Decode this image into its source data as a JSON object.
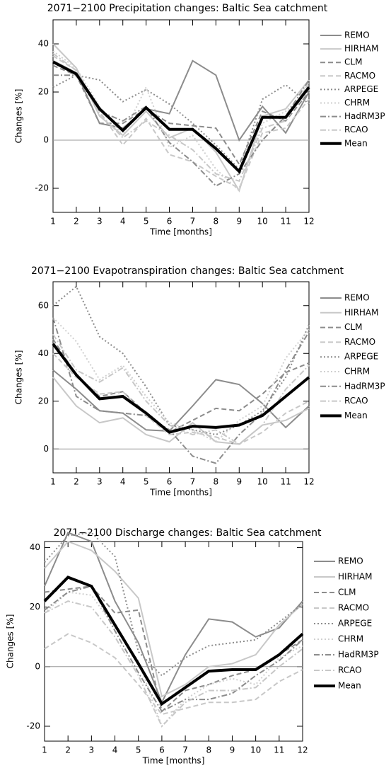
{
  "chart_data": [
    {
      "type": "line",
      "title": "2071−2100 Precipitation changes: Baltic Sea catchment",
      "x_label": "Time [months]",
      "y_label": "Changes [%]",
      "x": [
        1,
        2,
        3,
        4,
        5,
        6,
        7,
        8,
        9,
        10,
        11,
        12
      ],
      "xlim": [
        1,
        12
      ],
      "xticks": [
        1,
        2,
        3,
        4,
        5,
        6,
        7,
        8,
        9,
        10,
        11,
        12
      ],
      "ylim": [
        -30,
        50
      ],
      "yticks": [
        -20,
        0,
        20,
        40
      ],
      "legend": "right",
      "series": [
        {
          "name": "REMO",
          "color": "#8c8c8c",
          "linestyle": "solid",
          "linewidth": 2,
          "values": [
            33,
            28,
            7,
            5,
            13,
            11,
            33,
            27,
            0,
            14,
            3,
            20
          ]
        },
        {
          "name": "HIRHAM",
          "color": "#c8c8c8",
          "linestyle": "solid",
          "linewidth": 2,
          "values": [
            40,
            30,
            10,
            2,
            12,
            1,
            5,
            -5,
            -21,
            10,
            13,
            25
          ]
        },
        {
          "name": "CLM",
          "color": "#8c8c8c",
          "linestyle": "dashed",
          "linewidth": 2,
          "values": [
            31,
            27,
            7,
            7,
            13,
            7,
            6,
            5,
            -10,
            12,
            8,
            20
          ]
        },
        {
          "name": "RACMO",
          "color": "#c8c8c8",
          "linestyle": "dashed",
          "linewidth": 2,
          "values": [
            35,
            29,
            12,
            -2,
            9,
            -6,
            -9,
            -15,
            -20,
            3,
            5,
            17
          ]
        },
        {
          "name": "ARPEGE",
          "color": "#8c8c8c",
          "linestyle": "dotted",
          "linewidth": 2,
          "values": [
            22,
            27,
            25,
            16,
            21,
            15,
            7,
            -2,
            -12,
            17,
            23,
            15
          ]
        },
        {
          "name": "CHRM",
          "color": "#d0d0d0",
          "linestyle": "dotted",
          "linewidth": 2,
          "values": [
            37,
            30,
            14,
            2,
            22,
            -3,
            2,
            -12,
            -21,
            7,
            12,
            21
          ]
        },
        {
          "name": "HadRM3P",
          "color": "#8c8c8c",
          "linestyle": "dashdot",
          "linewidth": 2,
          "values": [
            27,
            27,
            12,
            8,
            14,
            -1,
            -9,
            -19,
            -14,
            0,
            10,
            25
          ]
        },
        {
          "name": "RCAO",
          "color": "#c8c8c8",
          "linestyle": "dashdot",
          "linewidth": 2,
          "values": [
            36,
            29,
            11,
            1,
            8,
            2,
            -4,
            -14,
            -17,
            5,
            8,
            24
          ]
        },
        {
          "name": "Mean",
          "color": "#000000",
          "linestyle": "solid",
          "linewidth": 4,
          "values": [
            32.5,
            27.5,
            13,
            4,
            13.5,
            4.5,
            4.5,
            -3.5,
            -13,
            9.5,
            9.5,
            22
          ]
        }
      ]
    },
    {
      "type": "line",
      "title": "2071−2100 Evapotranspiration changes: Baltic Sea catchment",
      "x_label": "Time [months]",
      "y_label": "Changes [%]",
      "x": [
        1,
        2,
        3,
        4,
        5,
        6,
        7,
        8,
        9,
        10,
        11,
        12
      ],
      "xlim": [
        1,
        12
      ],
      "xticks": [
        1,
        2,
        3,
        4,
        5,
        6,
        7,
        8,
        9,
        10,
        11,
        12
      ],
      "ylim": [
        -10,
        70
      ],
      "yticks": [
        0,
        20,
        40,
        60
      ],
      "legend": "right",
      "series": [
        {
          "name": "REMO",
          "color": "#8c8c8c",
          "linestyle": "solid",
          "linewidth": 2,
          "values": [
            33,
            25,
            16,
            15,
            8,
            7.5,
            18,
            29,
            27,
            19,
            9,
            18
          ]
        },
        {
          "name": "HIRHAM",
          "color": "#c8c8c8",
          "linestyle": "solid",
          "linewidth": 2,
          "values": [
            30,
            18,
            11,
            13,
            6,
            3,
            11,
            3,
            2,
            10,
            12,
            17
          ]
        },
        {
          "name": "CLM",
          "color": "#8c8c8c",
          "linestyle": "dashed",
          "linewidth": 2,
          "values": [
            46,
            31,
            22,
            24,
            15,
            7,
            12,
            17,
            16,
            23,
            32,
            36
          ]
        },
        {
          "name": "RACMO",
          "color": "#c8c8c8",
          "linestyle": "dashed",
          "linewidth": 2,
          "values": [
            40,
            30,
            23,
            24,
            14,
            6,
            7,
            5,
            2,
            7,
            15,
            20
          ]
        },
        {
          "name": "ARPEGE",
          "color": "#8c8c8c",
          "linestyle": "dotted",
          "linewidth": 2,
          "values": [
            60,
            68,
            47,
            40,
            26,
            10,
            8,
            6,
            10,
            16,
            30,
            52
          ]
        },
        {
          "name": "CHRM",
          "color": "#d0d0d0",
          "linestyle": "dotted",
          "linewidth": 2,
          "values": [
            55,
            45,
            29,
            35,
            22,
            11,
            8,
            3,
            12,
            18,
            38,
            50
          ]
        },
        {
          "name": "HadRM3P",
          "color": "#8c8c8c",
          "linestyle": "dashdot",
          "linewidth": 2,
          "values": [
            55,
            22,
            16,
            15,
            14,
            8,
            -3,
            -6,
            6,
            15,
            33,
            49
          ]
        },
        {
          "name": "RCAO",
          "color": "#c8c8c8",
          "linestyle": "dashdot",
          "linewidth": 2,
          "values": [
            48,
            33,
            28,
            34,
            20,
            10,
            6,
            8,
            2,
            10,
            25,
            35
          ]
        },
        {
          "name": "Mean",
          "color": "#000000",
          "linestyle": "solid",
          "linewidth": 4,
          "values": [
            44,
            31,
            21,
            22,
            15,
            7,
            9.5,
            9,
            10,
            14,
            22,
            30
          ]
        }
      ]
    },
    {
      "type": "line",
      "title": "2071−2100 Discharge changes: Baltic Sea catchment",
      "x_label": "Time [months]",
      "y_label": "Changes [%]",
      "x": [
        1,
        2,
        3,
        4,
        5,
        6,
        7,
        8,
        9,
        10,
        11,
        12
      ],
      "xlim": [
        1,
        12
      ],
      "xticks": [
        1,
        2,
        3,
        4,
        5,
        6,
        7,
        8,
        9,
        10,
        11,
        12
      ],
      "ylim": [
        -25,
        42
      ],
      "yticks": [
        -20,
        0,
        20,
        40
      ],
      "legend": "right",
      "series": [
        {
          "name": "REMO",
          "color": "#8c8c8c",
          "linestyle": "solid",
          "linewidth": 2,
          "values": [
            27,
            45,
            42,
            22,
            8,
            -12,
            4,
            16,
            15,
            10,
            13,
            22
          ]
        },
        {
          "name": "HIRHAM",
          "color": "#c8c8c8",
          "linestyle": "solid",
          "linewidth": 2,
          "values": [
            33,
            42,
            39,
            32,
            23,
            -10,
            -6,
            0,
            1,
            4,
            14,
            21
          ]
        },
        {
          "name": "CLM",
          "color": "#8c8c8c",
          "linestyle": "dashed",
          "linewidth": 2,
          "values": [
            25,
            26,
            27,
            18,
            19,
            -15,
            -8,
            -6,
            -3,
            -1,
            4,
            9
          ]
        },
        {
          "name": "RACMO",
          "color": "#c8c8c8",
          "linestyle": "dashed",
          "linewidth": 2,
          "values": [
            6,
            11,
            8,
            3,
            -6,
            -16,
            -14,
            -12,
            -12,
            -11,
            -5,
            -1
          ]
        },
        {
          "name": "ARPEGE",
          "color": "#8c8c8c",
          "linestyle": "dotted",
          "linewidth": 2,
          "values": [
            35,
            44,
            45,
            37,
            5,
            -3,
            3,
            7,
            8,
            9,
            15,
            21
          ]
        },
        {
          "name": "CHRM",
          "color": "#d0d0d0",
          "linestyle": "dotted",
          "linewidth": 2,
          "values": [
            18,
            25,
            24,
            13,
            2,
            -20,
            -11,
            -6,
            -4,
            -6,
            3,
            7
          ]
        },
        {
          "name": "HadRM3P",
          "color": "#8c8c8c",
          "linestyle": "dashdot",
          "linewidth": 2,
          "values": [
            19,
            25,
            27,
            12,
            -2,
            -15,
            -11,
            -11,
            -9,
            -3,
            2,
            9
          ]
        },
        {
          "name": "RCAO",
          "color": "#c8c8c8",
          "linestyle": "dashdot",
          "linewidth": 2,
          "values": [
            18,
            22,
            20,
            10,
            -3,
            -20,
            -12,
            -8,
            -8,
            -7,
            0,
            6
          ]
        },
        {
          "name": "Mean",
          "color": "#000000",
          "linestyle": "solid",
          "linewidth": 4,
          "values": [
            22,
            30,
            27,
            14,
            1,
            -12.5,
            -7,
            -1.5,
            -1,
            -1,
            4,
            11
          ]
        }
      ]
    }
  ]
}
